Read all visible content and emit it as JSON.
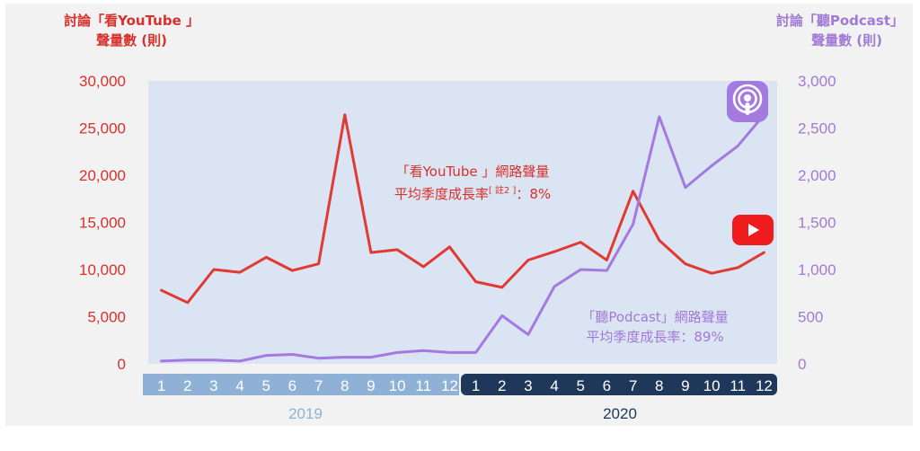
{
  "colors": {
    "youtube": "#e03a33",
    "podcast": "#a47ae0",
    "plot_bg": "#dbe4f2",
    "year2019_band": "#8fb1d6",
    "year2020_band": "#1f3859",
    "left_axis_text": "#d8302b",
    "right_axis_text": "#a17ad6"
  },
  "left_axis_title": {
    "line1": "討論「看YouTube 」",
    "line2": "聲量數 (則)"
  },
  "right_axis_title": {
    "line1": "討論「聽Podcast」",
    "line2": "聲量數 (則)"
  },
  "annotations": {
    "youtube": {
      "line1": "「看YouTube 」網路聲量",
      "line2": "平均季度成長率",
      "note_ref": "[ 註2 ]",
      "line2_end": "：8%"
    },
    "podcast": {
      "line1": "「聽Podcast」網路聲量",
      "line2": "平均季度成長率：89%"
    }
  },
  "icons": {
    "youtube": "youtube-play-icon",
    "podcast": "podcast-icon"
  },
  "chart_data": {
    "type": "line",
    "x": [
      "1",
      "2",
      "3",
      "4",
      "5",
      "6",
      "7",
      "8",
      "9",
      "10",
      "11",
      "12",
      "1",
      "2",
      "3",
      "4",
      "5",
      "6",
      "7",
      "8",
      "9",
      "10",
      "11",
      "12"
    ],
    "year_groups": [
      {
        "label": "2019",
        "start": 0,
        "end": 11
      },
      {
        "label": "2020",
        "start": 12,
        "end": 23
      }
    ],
    "series": [
      {
        "name": "「看YouTube 」網路聲量",
        "axis": "left",
        "values": [
          7800,
          6500,
          10000,
          9700,
          11300,
          9900,
          10600,
          26400,
          11800,
          12100,
          10300,
          12400,
          8700,
          8100,
          11000,
          11900,
          12900,
          11000,
          18300,
          13100,
          10600,
          9600,
          10200,
          11800
        ]
      },
      {
        "name": "「聽Podcast」網路聲量",
        "axis": "right",
        "values": [
          30,
          40,
          40,
          30,
          90,
          100,
          60,
          70,
          70,
          120,
          140,
          120,
          120,
          510,
          310,
          820,
          1000,
          990,
          1480,
          2620,
          1870,
          2100,
          2310,
          2640
        ]
      }
    ],
    "left_axis": {
      "range": [
        0,
        30000
      ],
      "ticks": [
        "0",
        "5,000",
        "10,000",
        "15,000",
        "20,000",
        "25,000",
        "30,000"
      ],
      "tick_values": [
        0,
        5000,
        10000,
        15000,
        20000,
        25000,
        30000
      ]
    },
    "right_axis": {
      "range": [
        0,
        3000
      ],
      "ticks": [
        "0",
        "500",
        "1,000",
        "1,500",
        "2,000",
        "2,500",
        "3,000"
      ],
      "tick_values": [
        0,
        500,
        1000,
        1500,
        2000,
        2500,
        3000
      ]
    },
    "grid": false,
    "legend": "none"
  }
}
